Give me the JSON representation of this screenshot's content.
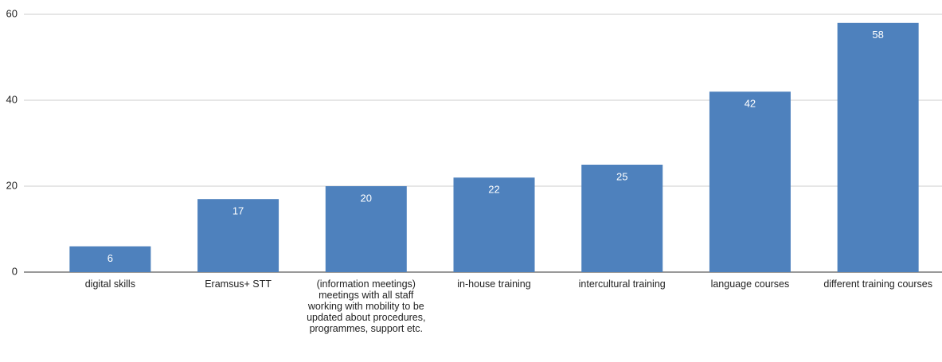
{
  "chart_data": {
    "type": "bar",
    "categories": [
      "digital skills",
      "Eramsus+ STT",
      "(information meetings) meetings with all staff working with mobility to be updated about procedures, programmes, support etc.",
      "in-house training",
      "intercultural training",
      "language courses",
      "different training courses"
    ],
    "values": [
      6,
      17,
      20,
      22,
      25,
      42,
      58
    ],
    "color": "#4e81bd",
    "ylim": [
      0,
      60
    ],
    "yticks": [
      0,
      20,
      40,
      60
    ],
    "grid": true
  }
}
